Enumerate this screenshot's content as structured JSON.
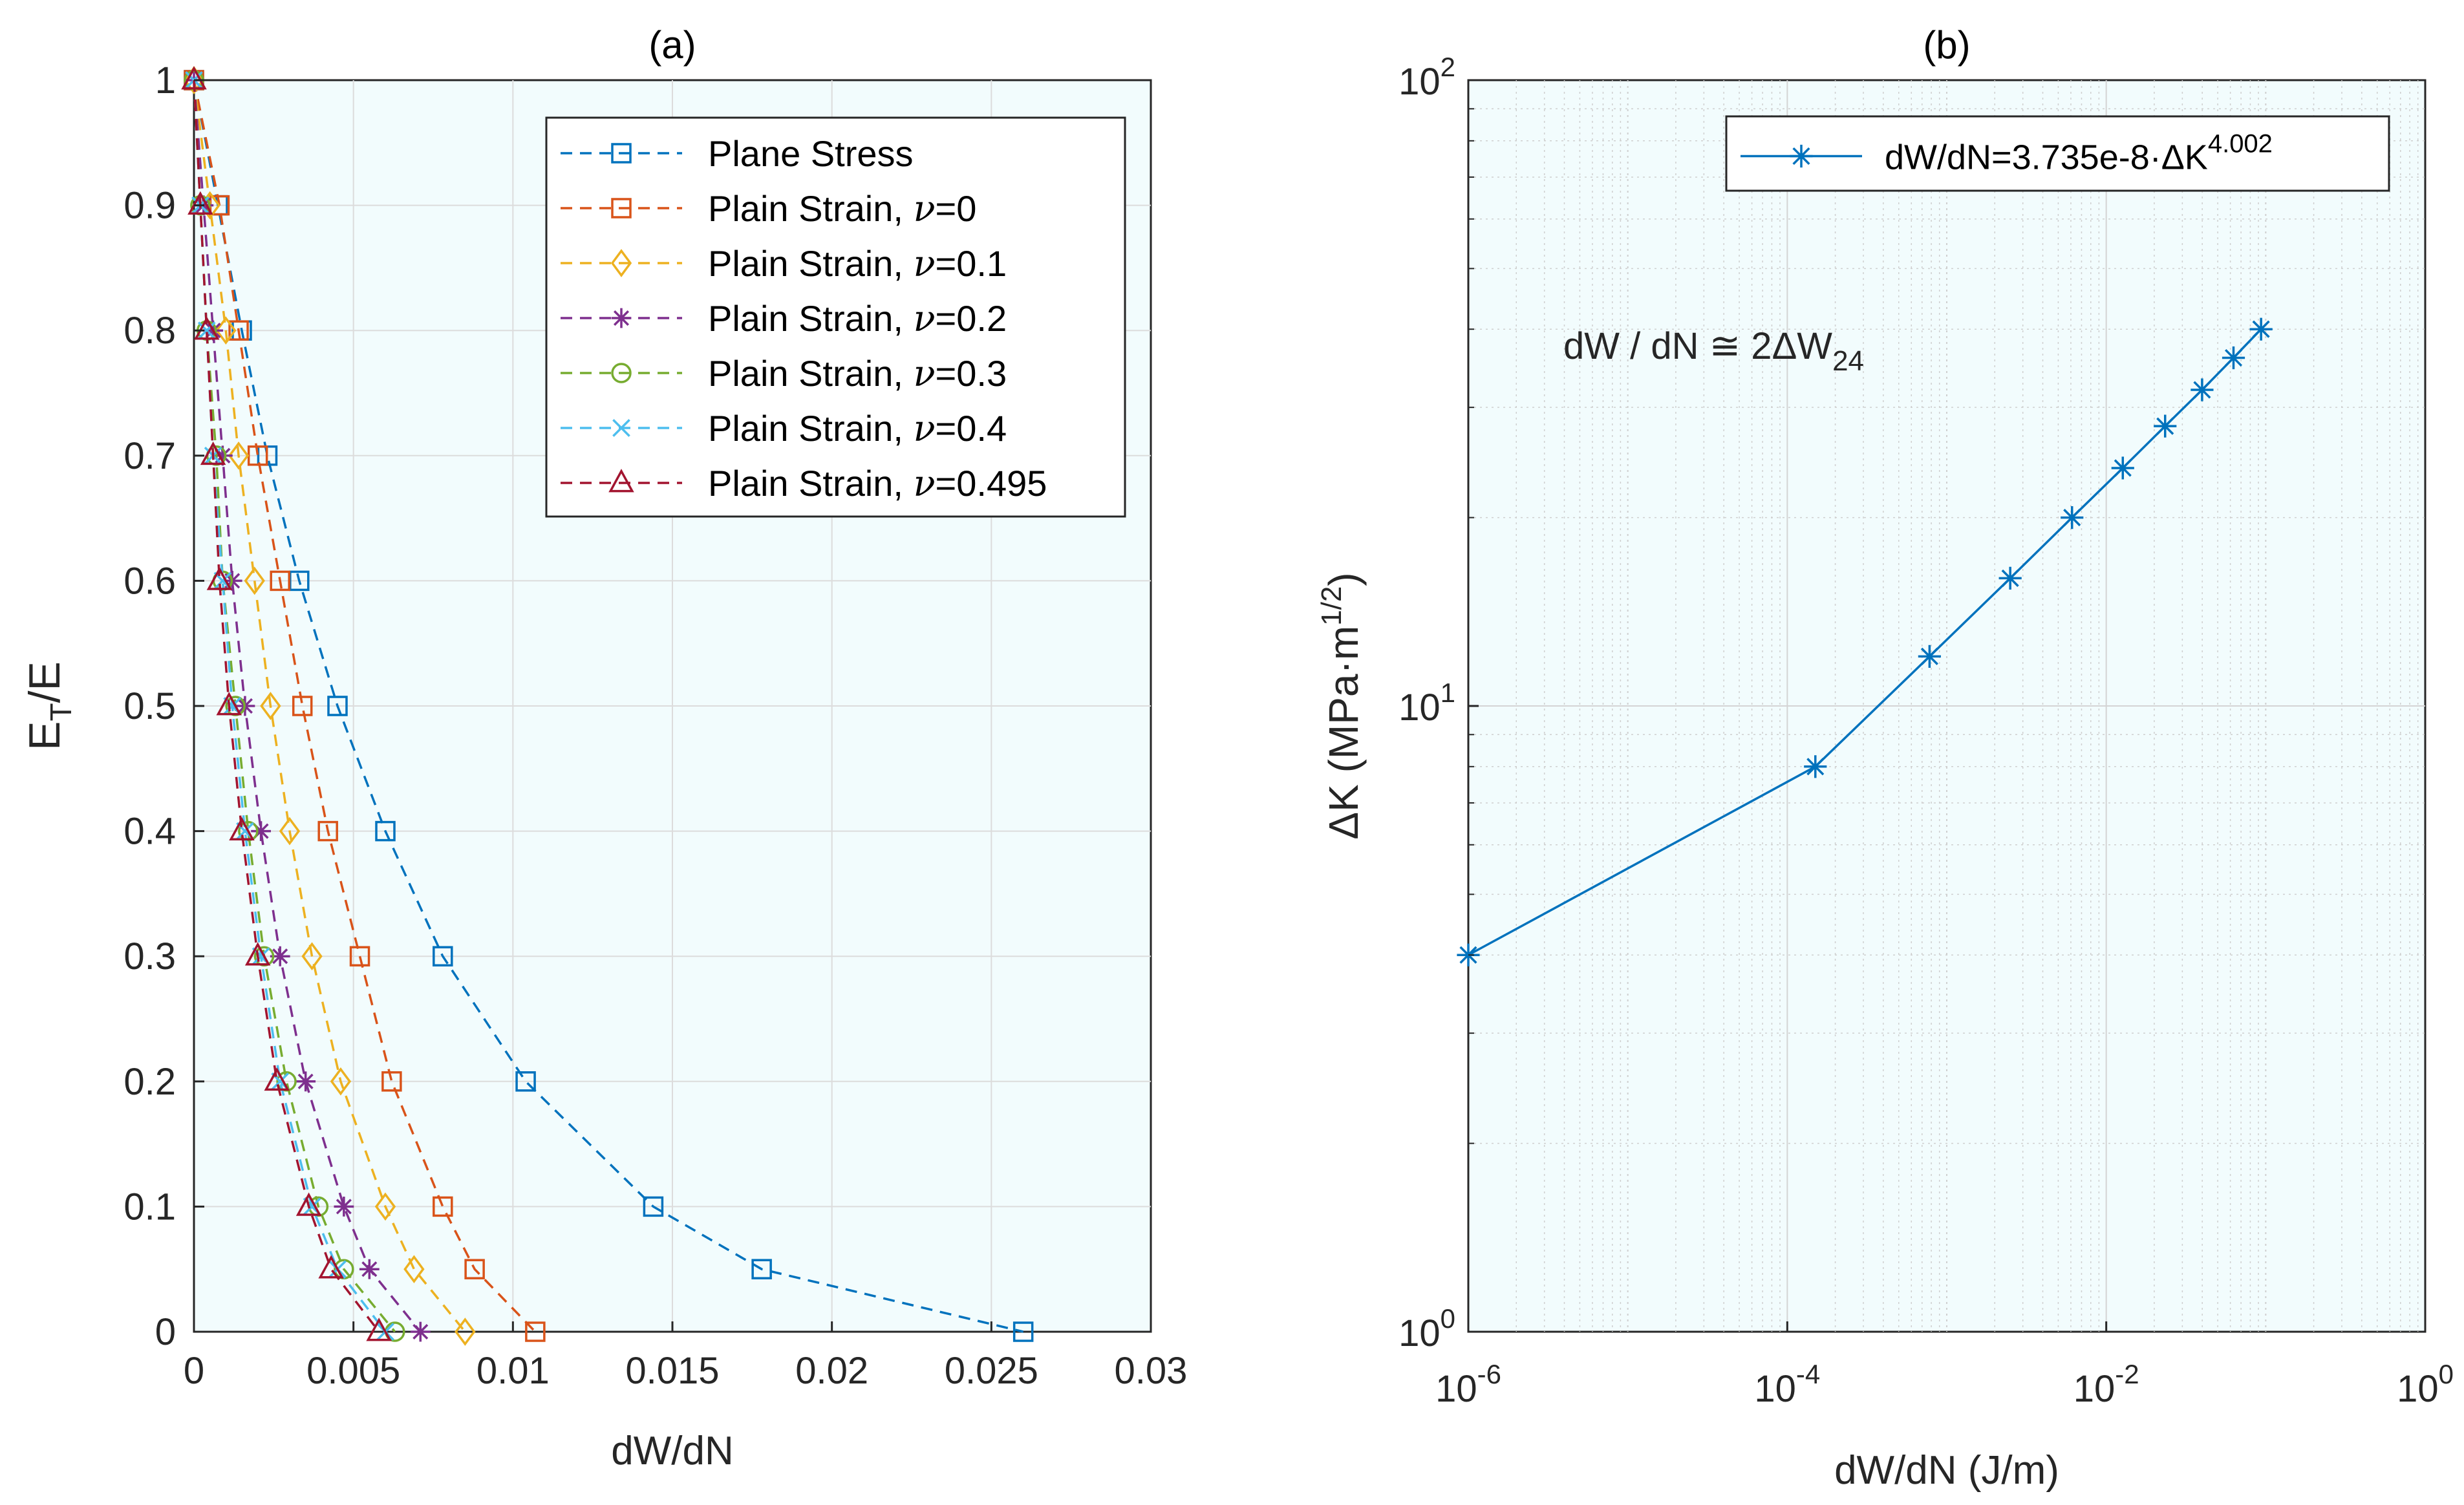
{
  "chart_data": [
    {
      "type": "line",
      "panel_label": "(a)",
      "xlabel": "dW/dN",
      "ylabel_main": "E",
      "ylabel_sub": "T",
      "ylabel_tail": "/E",
      "xlim": [
        0,
        0.03
      ],
      "ylim": [
        0,
        1
      ],
      "xticks": [
        0,
        0.005,
        0.01,
        0.015,
        0.02,
        0.025,
        0.03
      ],
      "xtick_labels": [
        "0",
        "0.005",
        "0.01",
        "0.015",
        "0.02",
        "0.025",
        "0.03"
      ],
      "yticks": [
        0,
        0.1,
        0.2,
        0.3,
        0.4,
        0.5,
        0.6,
        0.7,
        0.8,
        0.9,
        1
      ],
      "ytick_labels": [
        "0",
        "0.1",
        "0.2",
        "0.3",
        "0.4",
        "0.5",
        "0.6",
        "0.7",
        "0.8",
        "0.9",
        "1"
      ],
      "grid": true,
      "legend_position": "top-right",
      "series": [
        {
          "name": "Plane Stress",
          "legend_prefix": "Plane Stress",
          "legend_nu": "",
          "color": "#0072BD",
          "marker": "square",
          "x": [
            0,
            0.00075,
            0.0015,
            0.0023,
            0.0033,
            0.0045,
            0.006,
            0.0078,
            0.0104,
            0.0144,
            0.0178,
            0.026
          ],
          "y": [
            1,
            0.9,
            0.8,
            0.7,
            0.6,
            0.5,
            0.4,
            0.3,
            0.2,
            0.1,
            0.05,
            0
          ]
        },
        {
          "name": "Plain Strain, ν=0",
          "legend_prefix": "Plain Strain, ",
          "legend_nu": "=0",
          "color": "#D95319",
          "marker": "square",
          "x": [
            0,
            0.0008,
            0.0014,
            0.002,
            0.0027,
            0.0034,
            0.0042,
            0.0052,
            0.0062,
            0.0078,
            0.0088,
            0.0107
          ],
          "y": [
            1,
            0.9,
            0.8,
            0.7,
            0.6,
            0.5,
            0.4,
            0.3,
            0.2,
            0.1,
            0.05,
            0
          ]
        },
        {
          "name": "Plain Strain, ν=0.1",
          "legend_prefix": "Plain Strain, ",
          "legend_nu": "=0.1",
          "color": "#EDB120",
          "marker": "diamond",
          "x": [
            0,
            0.0005,
            0.001,
            0.0014,
            0.0019,
            0.0024,
            0.003,
            0.0037,
            0.0046,
            0.006,
            0.0069,
            0.0085
          ],
          "y": [
            1,
            0.9,
            0.8,
            0.7,
            0.6,
            0.5,
            0.4,
            0.3,
            0.2,
            0.1,
            0.05,
            0
          ]
        },
        {
          "name": "Plain Strain, ν=0.2",
          "legend_prefix": "Plain Strain, ",
          "legend_nu": "=0.2",
          "color": "#7E2F8E",
          "marker": "asterisk",
          "x": [
            0,
            0.0003,
            0.0006,
            0.0009,
            0.0012,
            0.0016,
            0.0021,
            0.0027,
            0.0035,
            0.0047,
            0.0055,
            0.0071
          ],
          "y": [
            1,
            0.9,
            0.8,
            0.7,
            0.6,
            0.5,
            0.4,
            0.3,
            0.2,
            0.1,
            0.05,
            0
          ]
        },
        {
          "name": "Plain Strain, ν=0.3",
          "legend_prefix": "Plain Strain, ",
          "legend_nu": "=0.3",
          "color": "#77AC30",
          "marker": "circle",
          "x": [
            0,
            0.0002,
            0.0004,
            0.0007,
            0.0009,
            0.0013,
            0.0017,
            0.0022,
            0.0029,
            0.0039,
            0.0047,
            0.0063
          ],
          "y": [
            1,
            0.9,
            0.8,
            0.7,
            0.6,
            0.5,
            0.4,
            0.3,
            0.2,
            0.1,
            0.05,
            0
          ]
        },
        {
          "name": "Plain Strain, ν=0.4",
          "legend_prefix": "Plain Strain, ",
          "legend_nu": "=0.4",
          "color": "#4DBEEE",
          "marker": "x",
          "x": [
            0,
            0.0002,
            0.0004,
            0.0006,
            0.0009,
            0.0012,
            0.0016,
            0.0021,
            0.0027,
            0.0037,
            0.0045,
            0.006
          ],
          "y": [
            1,
            0.9,
            0.8,
            0.7,
            0.6,
            0.5,
            0.4,
            0.3,
            0.2,
            0.1,
            0.05,
            0
          ]
        },
        {
          "name": "Plain Strain, ν=0.495",
          "legend_prefix": "Plain Strain, ",
          "legend_nu": "=0.495",
          "color": "#A2142F",
          "marker": "triangle",
          "x": [
            0,
            0.0002,
            0.0004,
            0.0006,
            0.0008,
            0.0011,
            0.0015,
            0.002,
            0.0026,
            0.0036,
            0.0043,
            0.0058
          ],
          "y": [
            1,
            0.9,
            0.8,
            0.7,
            0.6,
            0.5,
            0.4,
            0.3,
            0.2,
            0.1,
            0.05,
            0
          ]
        }
      ]
    },
    {
      "type": "line",
      "panel_label": "(b)",
      "xlabel": "dW/dN (J/m)",
      "ylabel": "ΔK (MPa·m",
      "ylabel_exp": "1/2",
      "ylabel_close": ")",
      "xscale": "log",
      "yscale": "log",
      "xlim": [
        1e-06,
        1
      ],
      "ylim": [
        1,
        100
      ],
      "xticks": [
        1e-06,
        0.0001,
        0.01,
        1
      ],
      "xtick_bases": [
        "10",
        "10",
        "10",
        "10"
      ],
      "xtick_exps": [
        "-6",
        "-4",
        "-2",
        "0"
      ],
      "yticks": [
        1,
        10,
        100
      ],
      "ytick_bases": [
        "10",
        "10",
        "10"
      ],
      "ytick_exps": [
        "0",
        "1",
        "2"
      ],
      "grid": true,
      "minor_grid": true,
      "legend_position": "top-right",
      "annotation": {
        "main": "dW / dN ≅ 2ΔW",
        "sub": "24"
      },
      "series": [
        {
          "name": "dW/dN=3.735e-8·ΔK^4.002",
          "legend_main": "dW/dN=3.735e-8·ΔK",
          "legend_exp": "4.002",
          "color": "#0072BD",
          "marker": "asterisk",
          "x": [
            1e-06,
            0.00015,
            0.00078,
            0.0025,
            0.0061,
            0.0127,
            0.0234,
            0.0399,
            0.0628,
            0.0935
          ],
          "y": [
            4,
            8,
            12,
            16,
            20,
            24,
            28,
            32,
            36,
            40
          ]
        }
      ]
    }
  ]
}
